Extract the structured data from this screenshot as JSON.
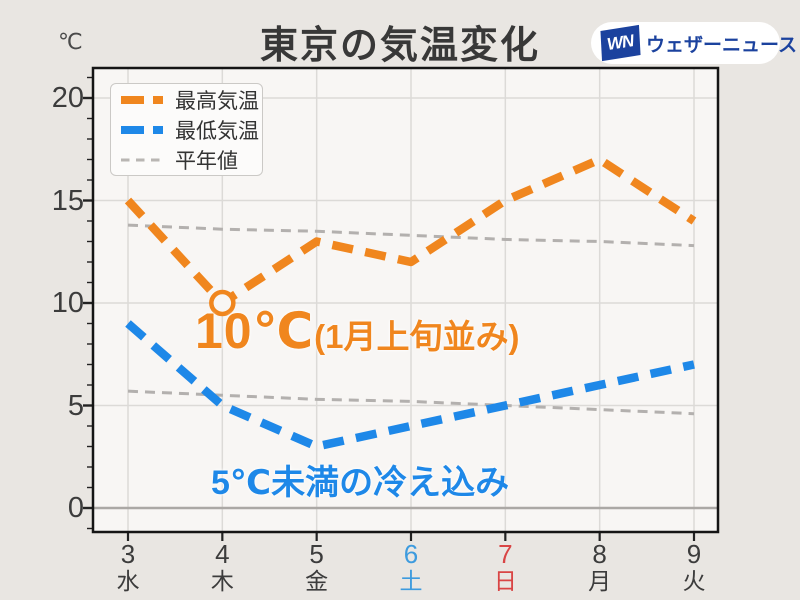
{
  "title": "東京の気温変化",
  "y_axis": {
    "unit": "℃"
  },
  "logo": {
    "mark": "WN",
    "text": "ウェザーニュース"
  },
  "legend": {
    "items": [
      {
        "label": "最高気温",
        "color": "#F0861E",
        "thick": true
      },
      {
        "label": "最低気温",
        "color": "#1E88E8",
        "thick": true
      },
      {
        "label": "平年値",
        "color": "#B9B6B3",
        "thick": false
      }
    ]
  },
  "annotations": {
    "max_value": "10℃",
    "max_suffix": "(1月上旬並み)",
    "min_note": "5℃未満の冷え込み"
  },
  "chart_data": {
    "type": "line",
    "x": [
      3,
      4,
      5,
      6,
      7,
      8,
      9
    ],
    "x_weekdays": [
      "水",
      "木",
      "金",
      "土",
      "日",
      "月",
      "火"
    ],
    "x_label_colors": [
      "#3C3C3C",
      "#3C3C3C",
      "#3C3C3C",
      "#3D9BDE",
      "#D94545",
      "#3C3C3C",
      "#3C3C3C"
    ],
    "yticks": [
      0,
      5,
      10,
      15,
      20
    ],
    "ylim": [
      -1.2,
      21.5
    ],
    "grid": true,
    "legend_position": "top-left",
    "series": [
      {
        "name": "最高気温",
        "values": [
          15,
          10,
          13,
          12,
          15,
          17,
          14
        ],
        "color": "#F0861E",
        "style": "thick-dash"
      },
      {
        "name": "最低気温",
        "values": [
          9,
          5,
          3,
          4,
          5,
          6,
          7
        ],
        "color": "#1E88E8",
        "style": "thick-dash"
      },
      {
        "name": "平年値(最高)",
        "values": [
          13.8,
          13.6,
          13.5,
          13.3,
          13.1,
          13.0,
          12.8
        ],
        "color": "#B3B0AE",
        "style": "thin-dash"
      },
      {
        "name": "平年値(最低)",
        "values": [
          5.7,
          5.5,
          5.3,
          5.2,
          5.0,
          4.8,
          4.6
        ],
        "color": "#B3B0AE",
        "style": "thin-dash"
      }
    ],
    "highlight_marker": {
      "series": "最高気温",
      "x": 4,
      "value": 10
    }
  },
  "colors": {
    "background": "#E9E6E2",
    "plot_background": "#F8F6F4",
    "grid": "#DCDAD7",
    "zero_line": "#ABA8A5",
    "border": "#151515",
    "tick": "#222222"
  }
}
